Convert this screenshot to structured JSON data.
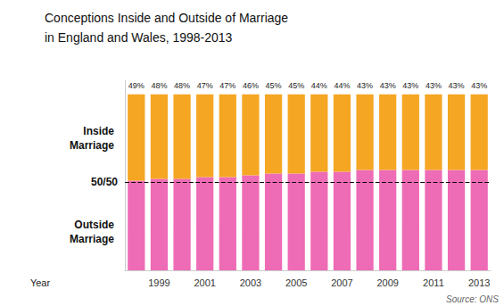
{
  "chart_data": {
    "type": "bar",
    "title": "Conceptions Inside and Outside of Marriage",
    "subtitle": "in England and Wales, 1998-2013",
    "x_label": "Year",
    "source": "Source: ONS",
    "categories": [
      null,
      "1999",
      null,
      "2001",
      null,
      "2003",
      null,
      "2005",
      null,
      "2007",
      null,
      "2009",
      null,
      "2011",
      null,
      "2013"
    ],
    "stacked": true,
    "series": [
      {
        "name": "Outside\nMarriage",
        "color": "#EE6BB5",
        "values": [
          51,
          52,
          52,
          53,
          53,
          54,
          55,
          55,
          56,
          56,
          57,
          57,
          57,
          57,
          57,
          57
        ]
      },
      {
        "name": "Inside\nMarriage",
        "color": "#F5A623",
        "values": [
          49,
          48,
          48,
          47,
          47,
          46,
          45,
          45,
          44,
          44,
          43,
          43,
          43,
          43,
          43,
          43
        ],
        "value_labels": [
          "49%",
          "48%",
          "48%",
          "47%",
          "47%",
          "46%",
          "45%",
          "45%",
          "44%",
          "44%",
          "43%",
          "43%",
          "43%",
          "43%",
          "43%",
          "43%"
        ]
      }
    ],
    "ylim": [
      0,
      108
    ],
    "tick_labels": "x",
    "grid": false,
    "annotations": [
      {
        "text": "50/50",
        "y": 50,
        "line_style": "dashed"
      }
    ]
  }
}
